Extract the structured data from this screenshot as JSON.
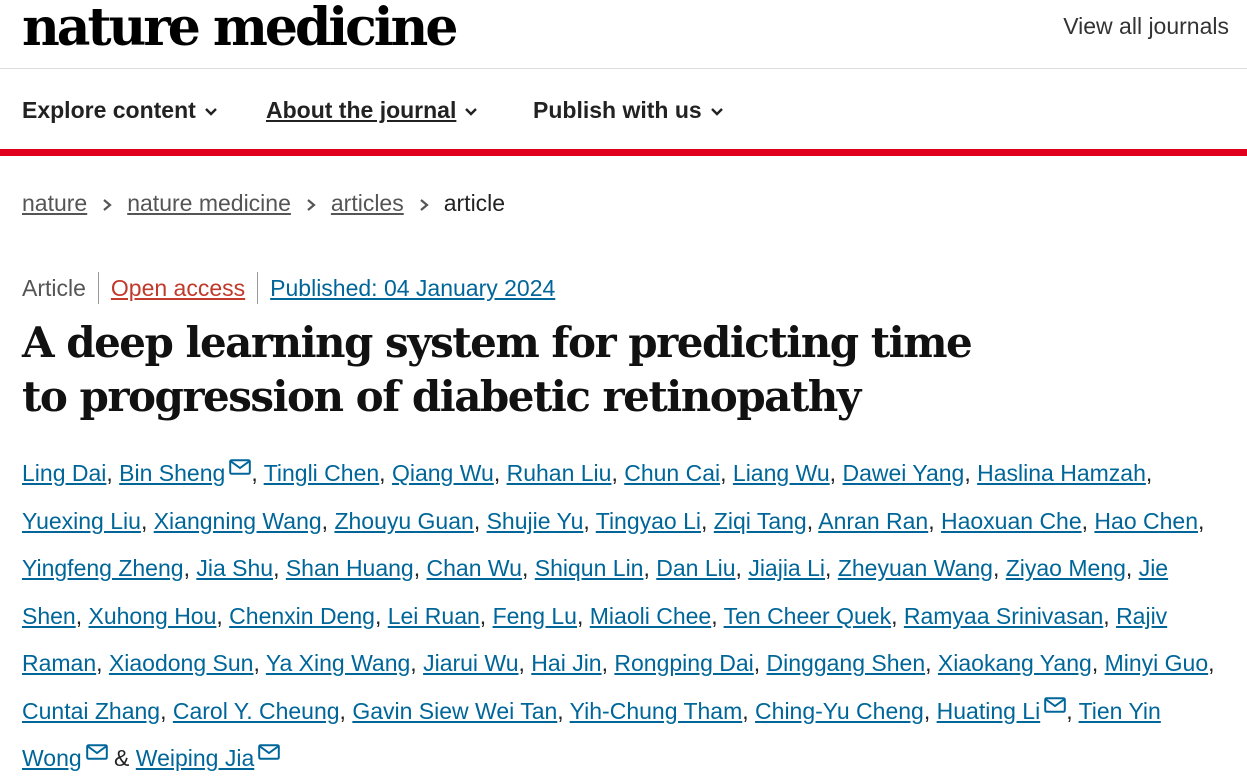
{
  "header": {
    "logo_text": "nature medicine",
    "view_all_journals": "View all journals"
  },
  "nav": {
    "items": [
      {
        "label": "Explore content"
      },
      {
        "label": "About the journal"
      },
      {
        "label": "Publish with us"
      }
    ]
  },
  "breadcrumb": {
    "items": [
      "nature",
      "nature medicine",
      "articles"
    ],
    "current": "article"
  },
  "article": {
    "type": "Article",
    "access": "Open access",
    "published": "Published: 04 January 2024",
    "title": "A deep learning system for predicting time to progression of diabetic retinopathy",
    "authors": [
      {
        "name": "Ling Dai"
      },
      {
        "name": "Bin Sheng",
        "email": true
      },
      {
        "name": "Tingli Chen"
      },
      {
        "name": "Qiang Wu"
      },
      {
        "name": "Ruhan Liu"
      },
      {
        "name": "Chun Cai"
      },
      {
        "name": "Liang Wu"
      },
      {
        "name": "Dawei Yang"
      },
      {
        "name": "Haslina Hamzah"
      },
      {
        "name": "Yuexing Liu"
      },
      {
        "name": "Xiangning Wang"
      },
      {
        "name": "Zhouyu Guan"
      },
      {
        "name": "Shujie Yu"
      },
      {
        "name": "Tingyao Li"
      },
      {
        "name": "Ziqi Tang"
      },
      {
        "name": "Anran Ran"
      },
      {
        "name": "Haoxuan Che"
      },
      {
        "name": "Hao Chen"
      },
      {
        "name": "Yingfeng Zheng"
      },
      {
        "name": "Jia Shu"
      },
      {
        "name": "Shan Huang"
      },
      {
        "name": "Chan Wu"
      },
      {
        "name": "Shiqun Lin"
      },
      {
        "name": "Dan Liu"
      },
      {
        "name": "Jiajia Li"
      },
      {
        "name": "Zheyuan Wang"
      },
      {
        "name": "Ziyao Meng"
      },
      {
        "name": "Jie Shen"
      },
      {
        "name": "Xuhong Hou"
      },
      {
        "name": "Chenxin Deng"
      },
      {
        "name": "Lei Ruan"
      },
      {
        "name": "Feng Lu"
      },
      {
        "name": "Miaoli Chee"
      },
      {
        "name": "Ten Cheer Quek"
      },
      {
        "name": "Ramyaa Srinivasan"
      },
      {
        "name": "Rajiv Raman"
      },
      {
        "name": "Xiaodong Sun"
      },
      {
        "name": "Ya Xing Wang"
      },
      {
        "name": "Jiarui Wu"
      },
      {
        "name": "Hai Jin"
      },
      {
        "name": "Rongping Dai"
      },
      {
        "name": "Dinggang Shen"
      },
      {
        "name": "Xiaokang Yang"
      },
      {
        "name": "Minyi Guo"
      },
      {
        "name": "Cuntai Zhang"
      },
      {
        "name": "Carol Y. Cheung"
      },
      {
        "name": "Gavin Siew Wei Tan"
      },
      {
        "name": "Yih-Chung Tham"
      },
      {
        "name": "Ching-Yu Cheng"
      },
      {
        "name": "Huating Li",
        "email": true
      },
      {
        "name": "Tien Yin Wong",
        "email": true
      },
      {
        "name": "Weiping Jia",
        "email": true
      }
    ],
    "separator": ", ",
    "last_separator": " & "
  },
  "colors": {
    "accent_red": "#e0001b",
    "link_blue": "#006699",
    "open_access": "#c0392b"
  },
  "icons": {
    "nav_chevron": "chevron-down-icon",
    "breadcrumb_sep": "chevron-right-icon",
    "author_email": "envelope-icon"
  }
}
